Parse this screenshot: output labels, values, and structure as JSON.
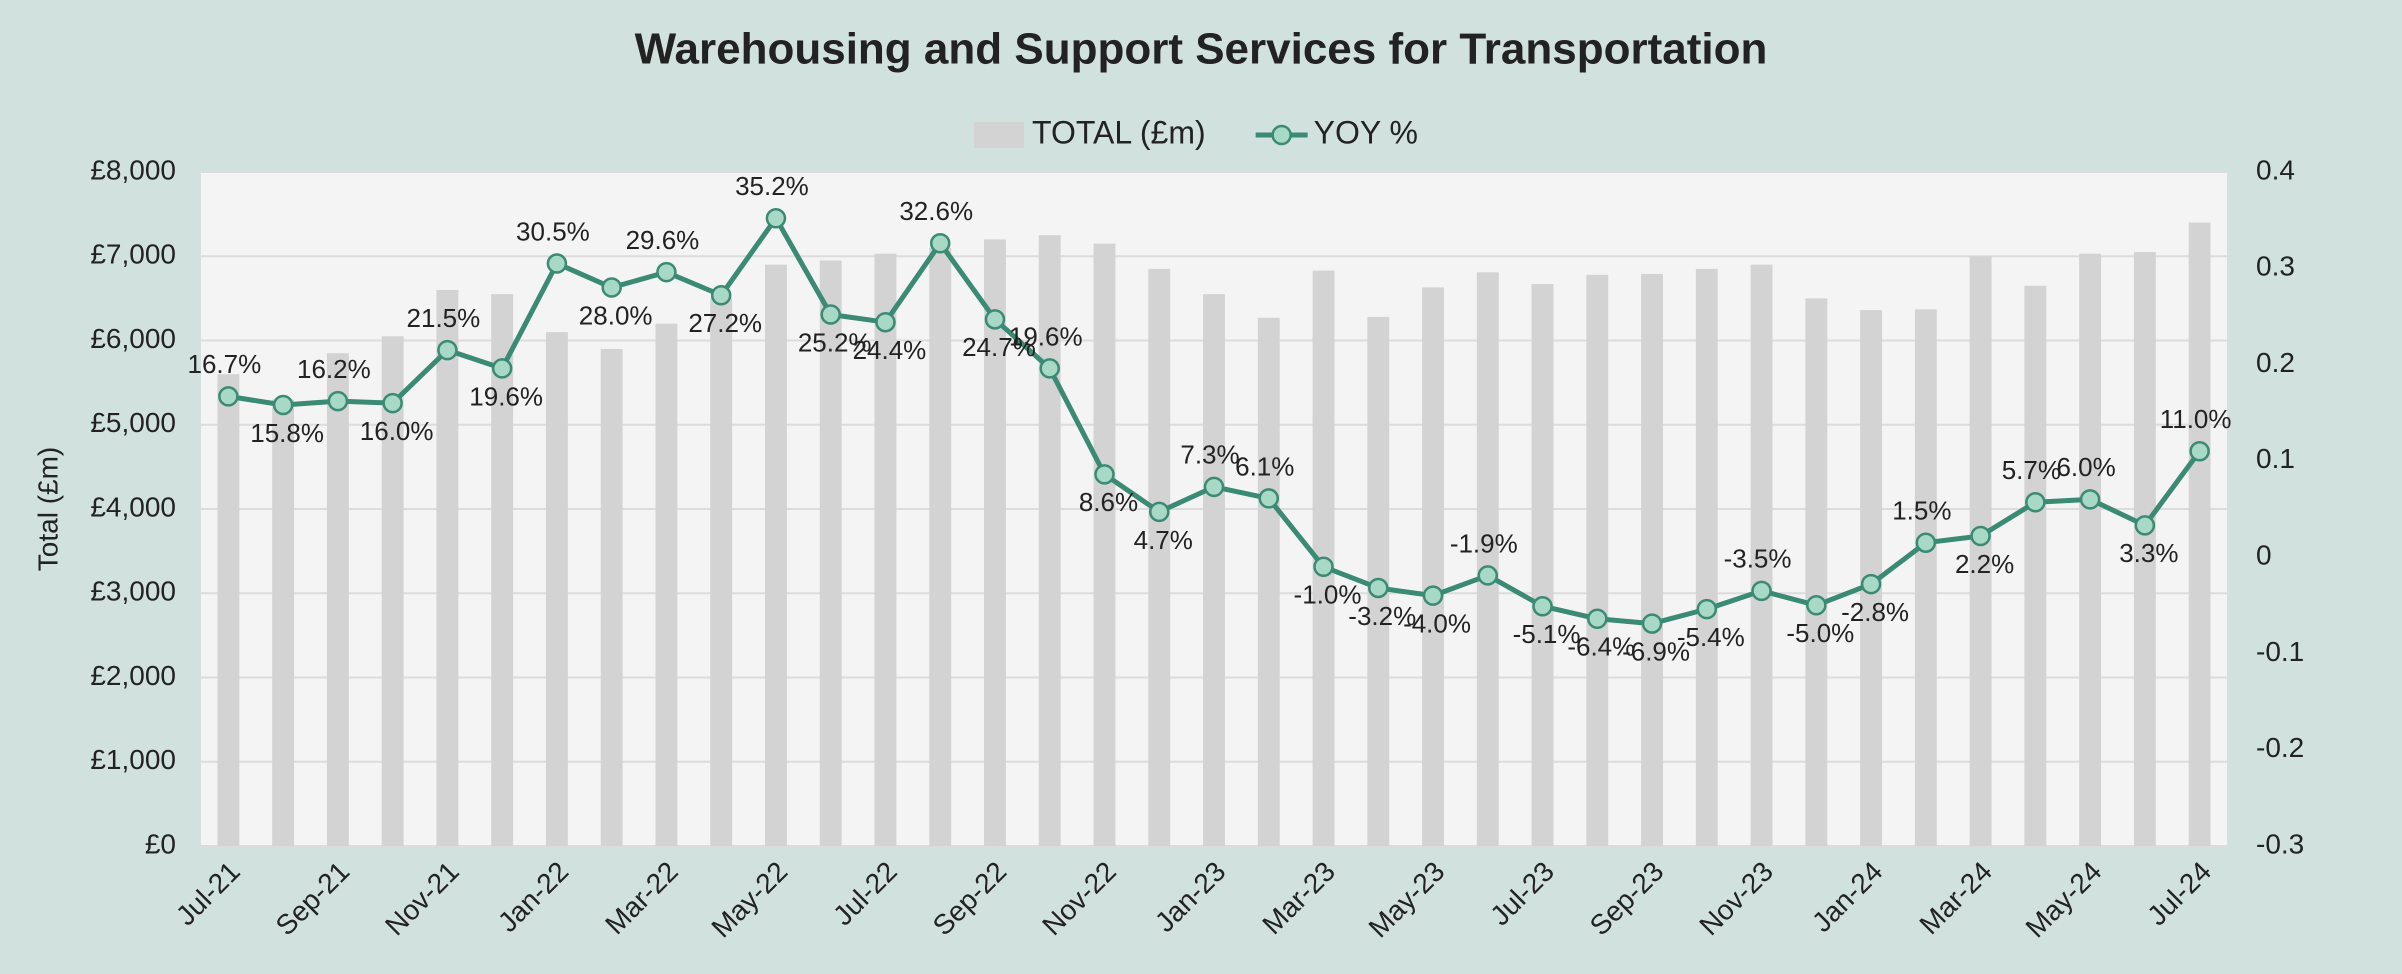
{
  "chart_data": {
    "type": "bar",
    "title": "Warehousing and Support Services for Transportation",
    "ylabel": "Total (£m)",
    "categories": [
      "Jul-21",
      null,
      "Sep-21",
      null,
      "Nov-21",
      null,
      "Jan-22",
      null,
      "Mar-22",
      null,
      "May-22",
      null,
      "Jul-22",
      null,
      "Sep-22",
      null,
      "Nov-22",
      null,
      "Jan-23",
      null,
      "Mar-23",
      null,
      "May-23",
      null,
      "Jul-23",
      null,
      "Sep-23",
      null,
      "Nov-23",
      null,
      "Jan-24",
      null,
      "Mar-24",
      null,
      "May-24",
      null,
      "Jul-24"
    ],
    "series": [
      {
        "name": "TOTAL (£m)",
        "type": "bar",
        "color": "#d3d3d3",
        "values": [
          5600,
          5300,
          5850,
          6050,
          6600,
          6550,
          6100,
          5900,
          6200,
          6500,
          6900,
          6950,
          7030,
          7100,
          7200,
          7250,
          7150,
          6850,
          6550,
          6270,
          6830,
          6280,
          6630,
          6810,
          6670,
          6780,
          6790,
          6850,
          6900,
          6500,
          6360,
          6370,
          7000,
          6650,
          7030,
          7050,
          7400
        ]
      },
      {
        "name": "YOY %",
        "type": "line",
        "axis": "y2",
        "color": "#3a8a74",
        "marker_color": "#a8d8c6",
        "values": [
          0.167,
          0.158,
          0.162,
          0.16,
          0.215,
          0.196,
          0.305,
          0.28,
          0.296,
          0.272,
          0.352,
          0.252,
          0.244,
          0.326,
          0.247,
          0.196,
          0.086,
          0.047,
          0.073,
          0.061,
          -0.01,
          -0.032,
          -0.04,
          -0.019,
          -0.051,
          -0.064,
          -0.069,
          -0.054,
          -0.035,
          -0.05,
          -0.028,
          0.015,
          0.022,
          0.057,
          0.06,
          0.033,
          0.11
        ],
        "value_labels": [
          "16.7%",
          "15.8%",
          "16.2%",
          "16.0%",
          "21.5%",
          "19.6%",
          "30.5%",
          "28.0%",
          "29.6%",
          "27.2%",
          "35.2%",
          "25.2%",
          "24.4%",
          "32.6%",
          "24.7%",
          "19.6%",
          "8.6%",
          "4.7%",
          "7.3%",
          "6.1%",
          "-1.0%",
          "-3.2%",
          "-4.0%",
          "-1.9%",
          "-5.1%",
          "-6.4%",
          "-6.9%",
          "-5.4%",
          "-3.5%",
          "-5.0%",
          "-2.8%",
          "1.5%",
          "2.2%",
          "5.7%",
          "6.0%",
          "3.3%",
          "11.0%"
        ]
      }
    ],
    "ylim": [
      0,
      8000
    ],
    "yticks": [
      {
        "value": 0,
        "label": "£0"
      },
      {
        "value": 1000,
        "label": "£1,000"
      },
      {
        "value": 2000,
        "label": "£2,000"
      },
      {
        "value": 3000,
        "label": "£3,000"
      },
      {
        "value": 4000,
        "label": "£4,000"
      },
      {
        "value": 5000,
        "label": "£5,000"
      },
      {
        "value": 6000,
        "label": "£6,000"
      },
      {
        "value": 7000,
        "label": "£7,000"
      },
      {
        "value": 8000,
        "label": "£8,000"
      }
    ],
    "y2lim": [
      -0.3,
      0.4
    ],
    "y2ticks": [
      -0.3,
      -0.2,
      -0.1,
      0,
      0.1,
      0.2,
      0.3,
      0.4
    ],
    "grid": true,
    "legend": "top"
  }
}
